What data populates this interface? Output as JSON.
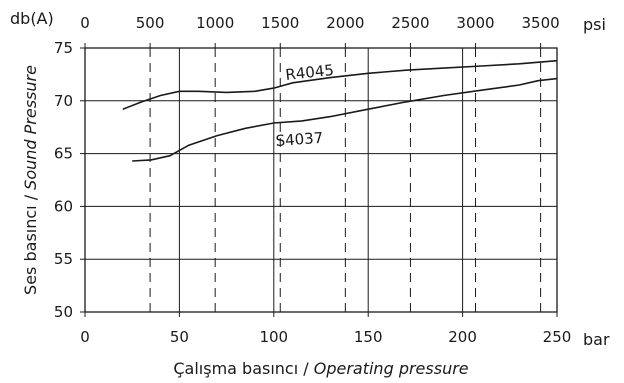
{
  "chart_data": {
    "type": "line",
    "y_unit": "db(A)",
    "x_unit": "bar",
    "top_unit": "psi",
    "xlabel_plain": "Çalışma basıncı / ",
    "xlabel_italic": "Operating pressure",
    "ylabel_plain": "Ses basıncı / ",
    "ylabel_italic": "Sound Pressure",
    "xlim": [
      0,
      250
    ],
    "ylim": [
      50,
      75
    ],
    "x_ticks": [
      "0",
      "50",
      "100",
      "150",
      "200",
      "250"
    ],
    "y_ticks": [
      "50",
      "55",
      "60",
      "65",
      "70",
      "75"
    ],
    "psi_ticks": [
      "0",
      "500",
      "1000",
      "1500",
      "2000",
      "2500",
      "3000",
      "3500"
    ],
    "psi_values": [
      0,
      500,
      1000,
      1500,
      2000,
      2500,
      3000,
      3500
    ],
    "psi_to_bar": 0.0689476,
    "grid": true,
    "series": [
      {
        "name": "R4045",
        "x": [
          20,
          30,
          40,
          50,
          60,
          75,
          90,
          100,
          110,
          130,
          150,
          170,
          190,
          210,
          230,
          250
        ],
        "y": [
          69.2,
          69.9,
          70.5,
          70.9,
          70.9,
          70.8,
          70.9,
          71.2,
          71.7,
          72.2,
          72.6,
          72.9,
          73.1,
          73.3,
          73.5,
          73.8
        ]
      },
      {
        "name": "S4037",
        "x": [
          25,
          35,
          45,
          55,
          70,
          85,
          100,
          115,
          130,
          150,
          170,
          190,
          210,
          230,
          240,
          250
        ],
        "y": [
          64.3,
          64.4,
          64.8,
          65.8,
          66.7,
          67.4,
          67.9,
          68.1,
          68.5,
          69.2,
          69.9,
          70.5,
          71.0,
          71.5,
          71.9,
          72.1
        ]
      }
    ]
  }
}
